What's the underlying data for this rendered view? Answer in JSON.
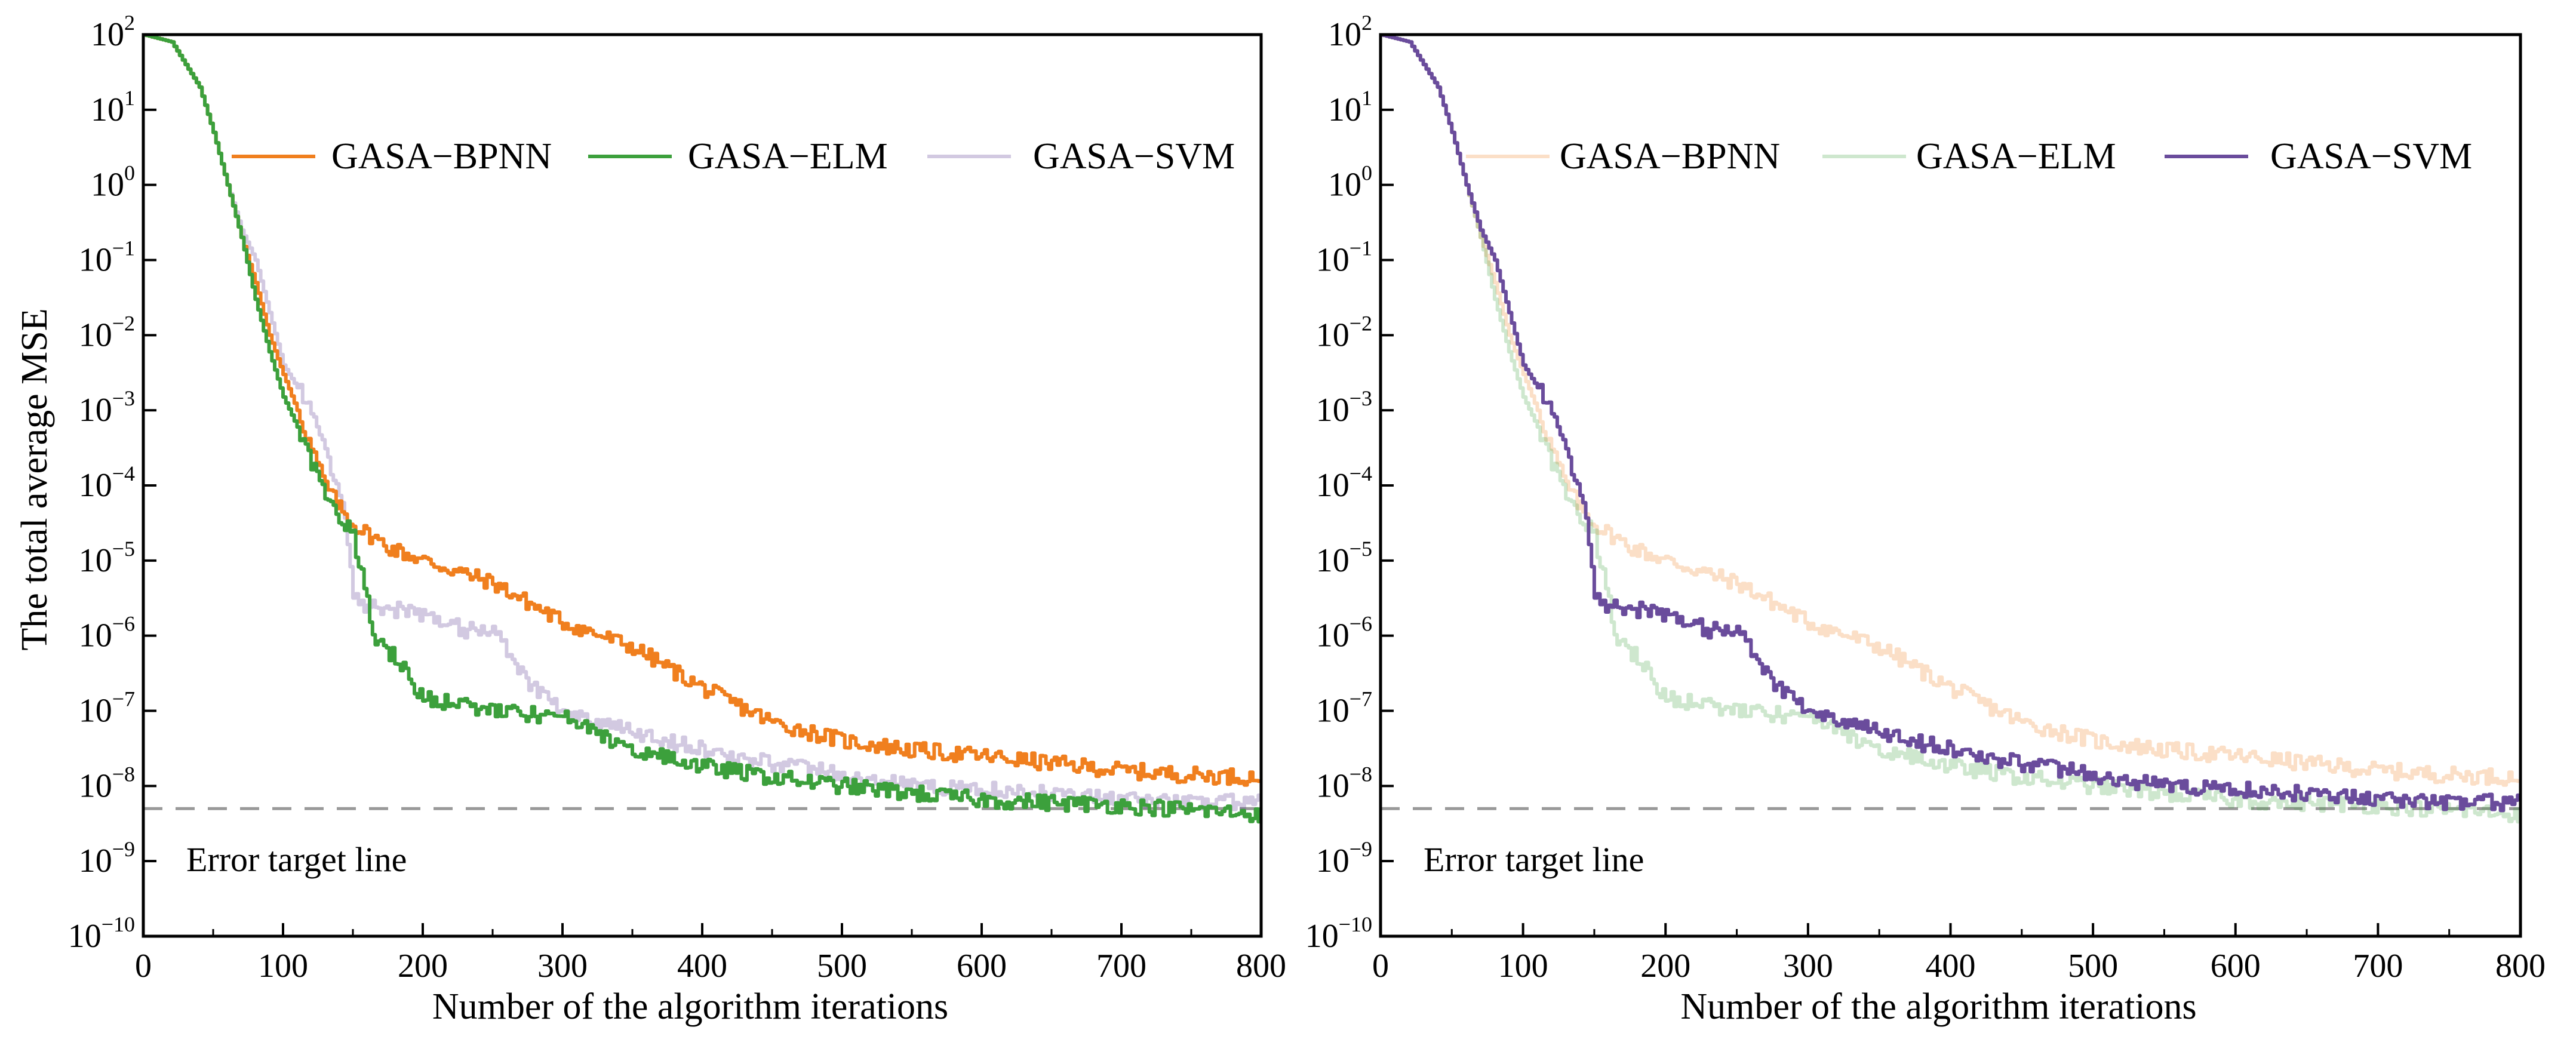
{
  "chart_data": [
    {
      "type": "line",
      "panel": "left",
      "xlabel": "Number of the algorithm iterations",
      "ylabel": "The total average MSE",
      "xlim": [
        0,
        800
      ],
      "ylim": [
        1e-10,
        100
      ],
      "y_scale": "log",
      "x_ticks": [
        0,
        100,
        200,
        300,
        400,
        500,
        600,
        700,
        800
      ],
      "y_ticks": [
        {
          "base": "10",
          "exp": "2"
        },
        {
          "base": "10",
          "exp": "1"
        },
        {
          "base": "10",
          "exp": "0"
        },
        {
          "base": "10",
          "exp": "-1"
        },
        {
          "base": "10",
          "exp": "-2"
        },
        {
          "base": "10",
          "exp": "-3"
        },
        {
          "base": "10",
          "exp": "-4"
        },
        {
          "base": "10",
          "exp": "-5"
        },
        {
          "base": "10",
          "exp": "-6"
        },
        {
          "base": "10",
          "exp": "-7"
        },
        {
          "base": "10",
          "exp": "-8"
        },
        {
          "base": "10",
          "exp": "-9"
        },
        {
          "base": "10",
          "exp": "-10"
        }
      ],
      "grid": false,
      "legend_position": "top",
      "target_line": {
        "label": "Error target line",
        "y": 5e-09,
        "color": "#999999"
      },
      "series": [
        {
          "name": "GASA−BPNN",
          "color": "#F07F1E",
          "opacity": 1.0,
          "x": [
            0,
            20,
            40,
            50,
            60,
            70,
            80,
            90,
            100,
            110,
            120,
            130,
            140,
            150,
            175,
            200,
            250,
            300,
            350,
            400,
            450,
            500,
            550,
            600,
            650,
            700,
            750,
            800
          ],
          "y": [
            100,
            80,
            20,
            5,
            1,
            0.2,
            0.05,
            0.01,
            0.003,
            0.001,
            0.0003,
            0.0001,
            5e-05,
            3e-05,
            1.5e-05,
            1e-05,
            5e-06,
            1.5e-06,
            7e-07,
            2e-07,
            7e-08,
            4e-08,
            3e-08,
            2.5e-08,
            2e-08,
            1.6e-08,
            1.4e-08,
            1.3e-08
          ]
        },
        {
          "name": "GASA−ELM",
          "color": "#3CA03C",
          "opacity": 1.0,
          "x": [
            0,
            20,
            40,
            50,
            60,
            70,
            80,
            90,
            100,
            110,
            120,
            130,
            140,
            150,
            165,
            180,
            200,
            250,
            300,
            350,
            400,
            450,
            500,
            550,
            600,
            650,
            700,
            750,
            800
          ],
          "y": [
            100,
            80,
            20,
            5,
            1,
            0.2,
            0.03,
            0.006,
            0.0015,
            0.0006,
            0.0002,
            8e-05,
            4e-05,
            2e-05,
            1e-06,
            5e-07,
            1.5e-07,
            1e-07,
            8e-08,
            3e-08,
            1.8e-08,
            1.3e-08,
            1e-08,
            8e-09,
            6.5e-09,
            6e-09,
            5.5e-09,
            4.8e-09,
            4.2e-09
          ]
        },
        {
          "name": "GASA−SVM",
          "color": "#6A4C9C",
          "opacity": 0.3,
          "x": [
            0,
            20,
            40,
            50,
            60,
            70,
            80,
            90,
            100,
            110,
            120,
            130,
            140,
            145,
            150,
            160,
            200,
            230,
            250,
            270,
            300,
            350,
            400,
            450,
            500,
            550,
            600,
            650,
            700,
            750,
            800
          ],
          "y": [
            100,
            80,
            20,
            5,
            1,
            0.25,
            0.1,
            0.02,
            0.004,
            0.002,
            0.001,
            0.0003,
            8e-05,
            3e-05,
            3e-06,
            2.5e-06,
            2e-06,
            1.2e-06,
            1.3e-06,
            3e-07,
            1e-07,
            5e-08,
            3e-08,
            2e-08,
            1.4e-08,
            1e-08,
            9e-09,
            8e-09,
            7e-09,
            6e-09,
            6e-09
          ]
        }
      ]
    },
    {
      "type": "line",
      "panel": "right",
      "xlabel": "Number of the algorithm iterations",
      "ylabel": "",
      "xlim": [
        0,
        800
      ],
      "ylim": [
        1e-10,
        100
      ],
      "y_scale": "log",
      "x_ticks": [
        0,
        100,
        200,
        300,
        400,
        500,
        600,
        700,
        800
      ],
      "y_ticks": [
        {
          "base": "10",
          "exp": "2"
        },
        {
          "base": "10",
          "exp": "1"
        },
        {
          "base": "10",
          "exp": "0"
        },
        {
          "base": "10",
          "exp": "-1"
        },
        {
          "base": "10",
          "exp": "-2"
        },
        {
          "base": "10",
          "exp": "-3"
        },
        {
          "base": "10",
          "exp": "-4"
        },
        {
          "base": "10",
          "exp": "-5"
        },
        {
          "base": "10",
          "exp": "-6"
        },
        {
          "base": "10",
          "exp": "-7"
        },
        {
          "base": "10",
          "exp": "-8"
        },
        {
          "base": "10",
          "exp": "-9"
        },
        {
          "base": "10",
          "exp": "-10"
        }
      ],
      "grid": false,
      "legend_position": "top",
      "target_line": {
        "label": "Error target line",
        "y": 5e-09,
        "color": "#999999"
      },
      "series": [
        {
          "name": "GASA−BPNN",
          "color": "#F07F1E",
          "opacity": 0.25,
          "x": [
            0,
            20,
            40,
            50,
            60,
            70,
            80,
            90,
            100,
            110,
            120,
            130,
            140,
            150,
            175,
            200,
            250,
            300,
            350,
            400,
            450,
            500,
            550,
            600,
            650,
            700,
            750,
            800
          ],
          "y": [
            100,
            80,
            20,
            5,
            1,
            0.2,
            0.05,
            0.01,
            0.003,
            0.001,
            0.0003,
            0.0001,
            5e-05,
            3e-05,
            1.5e-05,
            1e-05,
            5e-06,
            1.5e-06,
            7e-07,
            2e-07,
            7e-08,
            4e-08,
            3e-08,
            2.5e-08,
            2e-08,
            1.6e-08,
            1.4e-08,
            1.3e-08
          ]
        },
        {
          "name": "GASA−ELM",
          "color": "#3CA03C",
          "opacity": 0.25,
          "x": [
            0,
            20,
            40,
            50,
            60,
            70,
            80,
            90,
            100,
            110,
            120,
            130,
            140,
            150,
            165,
            180,
            200,
            250,
            300,
            350,
            400,
            450,
            500,
            550,
            600,
            650,
            700,
            750,
            800
          ],
          "y": [
            100,
            80,
            20,
            5,
            1,
            0.2,
            0.03,
            0.006,
            0.0015,
            0.0006,
            0.0002,
            8e-05,
            4e-05,
            2e-05,
            1e-06,
            5e-07,
            1.5e-07,
            1e-07,
            8e-08,
            3e-08,
            1.8e-08,
            1.3e-08,
            1e-08,
            8e-09,
            6.5e-09,
            6e-09,
            5.5e-09,
            4.8e-09,
            4.2e-09
          ]
        },
        {
          "name": "GASA−SVM",
          "color": "#6A4C9C",
          "opacity": 1.0,
          "x": [
            0,
            20,
            40,
            50,
            60,
            70,
            80,
            90,
            100,
            110,
            120,
            130,
            140,
            145,
            150,
            160,
            200,
            230,
            250,
            270,
            300,
            350,
            400,
            450,
            500,
            550,
            600,
            650,
            700,
            750,
            800
          ],
          "y": [
            100,
            80,
            20,
            5,
            1,
            0.25,
            0.1,
            0.02,
            0.004,
            0.002,
            0.001,
            0.0003,
            8e-05,
            3e-05,
            3e-06,
            2.5e-06,
            2e-06,
            1.2e-06,
            1.3e-06,
            3e-07,
            1e-07,
            5e-08,
            3e-08,
            2e-08,
            1.4e-08,
            1e-08,
            9e-09,
            8e-09,
            7e-09,
            6e-09,
            6e-09
          ]
        }
      ]
    }
  ]
}
